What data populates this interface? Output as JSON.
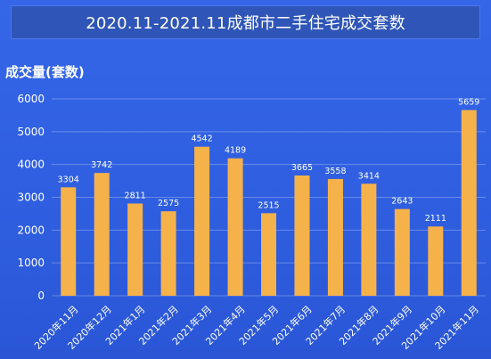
{
  "chart_data": {
    "type": "bar",
    "title": "2020.11-2021.11成都市二手住宅成交套数",
    "ylabel": "成交量(套数)",
    "xlabel": "",
    "ylim": [
      0,
      6000
    ],
    "yticks": [
      "0",
      "1000",
      "2000",
      "3000",
      "4000",
      "5000",
      "6000"
    ],
    "grid": true,
    "bar_color": "#f6b24a",
    "categories": [
      "2020年11月",
      "2020年12月",
      "2021年1月",
      "2021年2月",
      "2021年3月",
      "2021年4月",
      "2021年5月",
      "2021年6月",
      "2021年7月",
      "2021年8月",
      "2021年9月",
      "2021年10月",
      "2021年11月"
    ],
    "values": [
      3304,
      3742,
      2811,
      2575,
      4542,
      4189,
      2515,
      3665,
      3558,
      3414,
      2643,
      2111,
      5659
    ],
    "value_labels": [
      "3304",
      "3742",
      "2811",
      "2575",
      "4542",
      "4189",
      "2515",
      "3665",
      "3558",
      "3414",
      "2643",
      "2111",
      "5659"
    ]
  }
}
